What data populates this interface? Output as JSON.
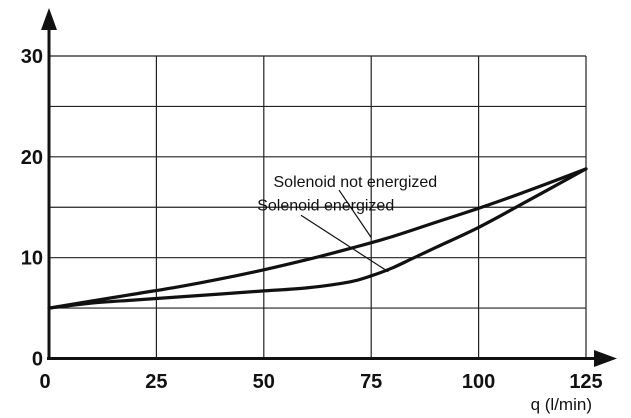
{
  "chart_data": {
    "type": "line",
    "title": "",
    "xlabel": "q (l/min)",
    "ylabel": "",
    "xlim": [
      0,
      125
    ],
    "ylim": [
      0,
      30
    ],
    "x_ticks": [
      "0",
      "25",
      "50",
      "75",
      "100",
      "125"
    ],
    "y_ticks": [
      "0",
      "10",
      "20",
      "30"
    ],
    "grid": true,
    "grid_x_step": 25,
    "grid_y_step": 5,
    "series": [
      {
        "name": "Solenoid not energized",
        "x": [
          0,
          10,
          20,
          30,
          40,
          50,
          60,
          70,
          80,
          90,
          100,
          110,
          125
        ],
        "y": [
          5.0,
          5.7,
          6.4,
          7.1,
          7.9,
          8.8,
          9.8,
          10.9,
          12.1,
          13.5,
          14.9,
          16.4,
          18.8
        ]
      },
      {
        "name": "Solenoid energized",
        "x": [
          0,
          10,
          20,
          30,
          40,
          50,
          60,
          70,
          75,
          80,
          85,
          90,
          100,
          110,
          125
        ],
        "y": [
          5.0,
          5.5,
          5.8,
          6.1,
          6.4,
          6.7,
          7.0,
          7.6,
          8.2,
          9.0,
          10.0,
          11.0,
          13.0,
          15.3,
          18.8
        ]
      }
    ],
    "annotations": [
      {
        "text": "Solenoid not energized",
        "series": 0,
        "anchor": [
          75,
          12.0
        ],
        "label": [
          75,
          17.0
        ]
      },
      {
        "text": "Solenoid energized",
        "series": 1,
        "anchor": [
          79,
          8.6
        ],
        "label": [
          65,
          14.7
        ]
      }
    ]
  }
}
